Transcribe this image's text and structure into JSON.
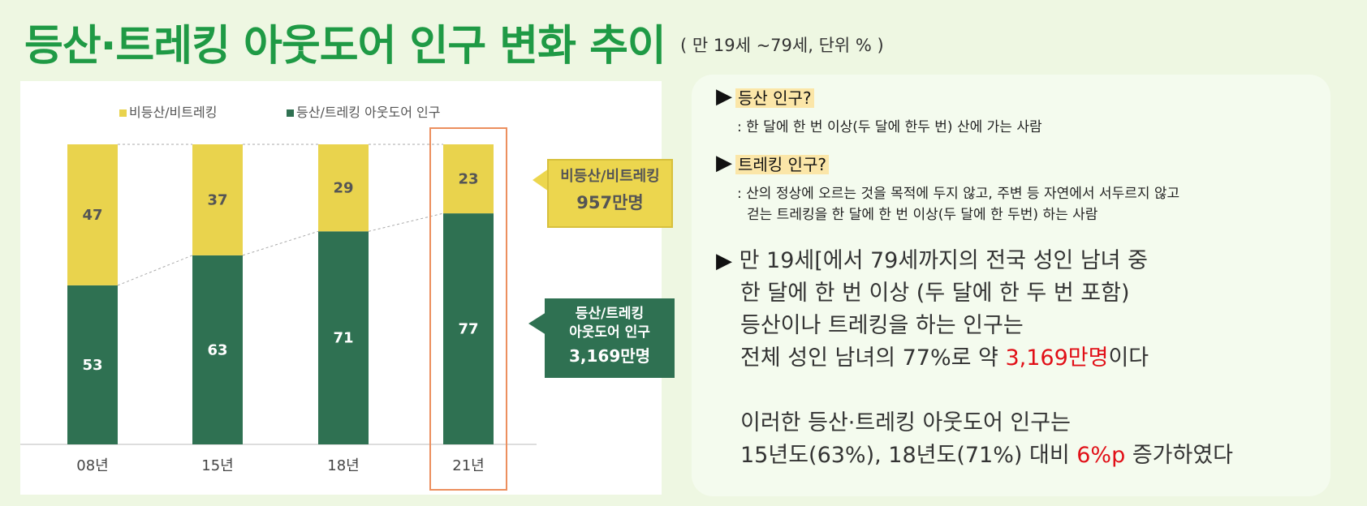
{
  "header": {
    "title": "등산·트레킹 아웃도어 인구 변화 추이",
    "subtitle": "( 만 19세 ~79세, 단위 % )"
  },
  "chart_data": {
    "type": "bar",
    "stacked": true,
    "categories": [
      "08년",
      "15년",
      "18년",
      "21년"
    ],
    "series": [
      {
        "name": "등산/트레킹 아웃도어 인구",
        "color": "#2f7152",
        "values": [
          53,
          63,
          71,
          77
        ]
      },
      {
        "name": "비등산/비트레킹",
        "color": "#e9d34d",
        "values": [
          47,
          37,
          29,
          23
        ]
      }
    ],
    "ylim": [
      0,
      100
    ],
    "legend": "top",
    "highlight_category": "21년",
    "callouts": [
      {
        "line1": "비등산/비트레킹",
        "line2": "957만명",
        "color": "#ecd64e"
      },
      {
        "line1": "등산/트레킹",
        "line1b": "아웃도어 인구",
        "line2": "3,169만명",
        "color": "#2f7152"
      }
    ]
  },
  "info": {
    "q1": {
      "label": "등산 인구?",
      "desc": ":  한 달에 한 번 이상(두 달에 한두 번) 산에 가는 사람"
    },
    "q2": {
      "label": "트레킹 인구?",
      "desc1": ": 산의 정상에 오르는 것을 목적에 두지 않고, 주변 등 자연에서 서두르지 않고",
      "desc2": "걷는 트레킹을 한 달에 한 번 이상(두 달에 한 두번) 하는 사람"
    },
    "summary": {
      "line1": "만 19세[에서 79세까지의 전국 성인 남녀 중",
      "line2": "한 달에 한 번 이상 (두 달에 한 두 번 포함)",
      "line3": "등산이나 트레킹을 하는 인구는",
      "line4_pre": "전체 성인 남녀의 77%로 약 ",
      "line4_hl": "3,169만명",
      "line4_post": "이다",
      "line5": "이러한 등산·트레킹 아웃도어 인구는",
      "line6_pre": "15년도(63%), 18년도(71%) 대비 ",
      "line6_hl": "6%p",
      "line6_post": " 증가하였다"
    }
  }
}
